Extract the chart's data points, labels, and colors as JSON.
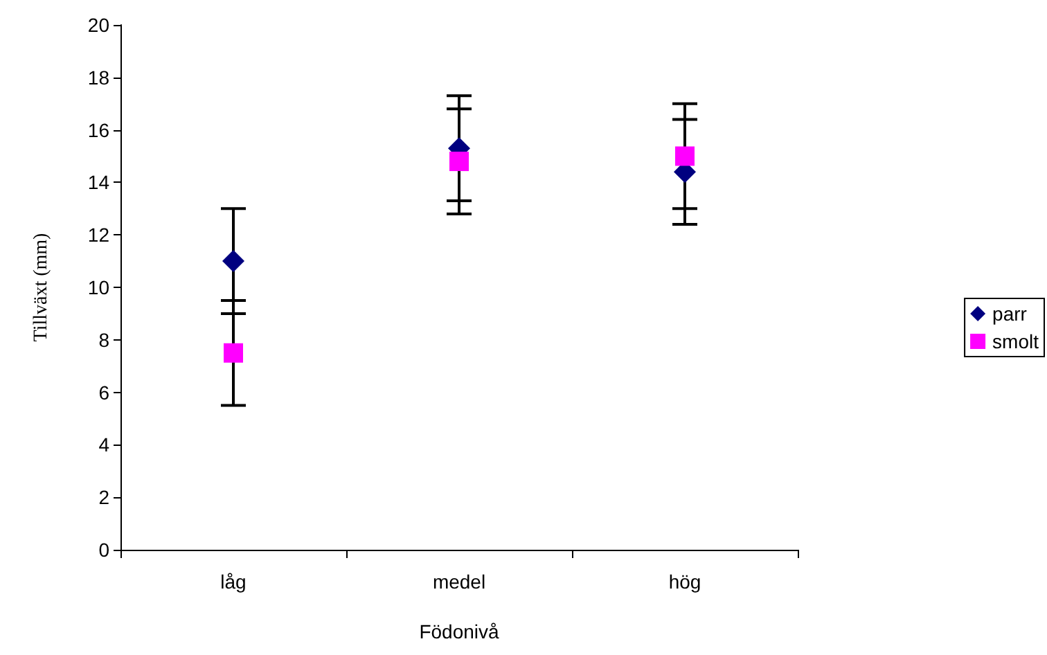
{
  "chart_data": {
    "type": "scatter",
    "xlabel": "Födonivå",
    "ylabel": "Tillväxt (mm)",
    "categories": [
      "låg",
      "medel",
      "hög"
    ],
    "series": [
      {
        "name": "parr",
        "color": "#000080",
        "marker": "diamond",
        "values": [
          11,
          15.3,
          14.4
        ],
        "errors": [
          2,
          2,
          2
        ]
      },
      {
        "name": "smolt",
        "color": "#ff00ff",
        "marker": "square",
        "values": [
          7.5,
          14.8,
          15
        ],
        "errors": [
          2,
          2,
          2
        ]
      }
    ],
    "ylim": [
      0,
      20
    ],
    "yticks": [
      0,
      2,
      4,
      6,
      8,
      10,
      12,
      14,
      16,
      18,
      20
    ],
    "grid": false,
    "legend": "right"
  }
}
